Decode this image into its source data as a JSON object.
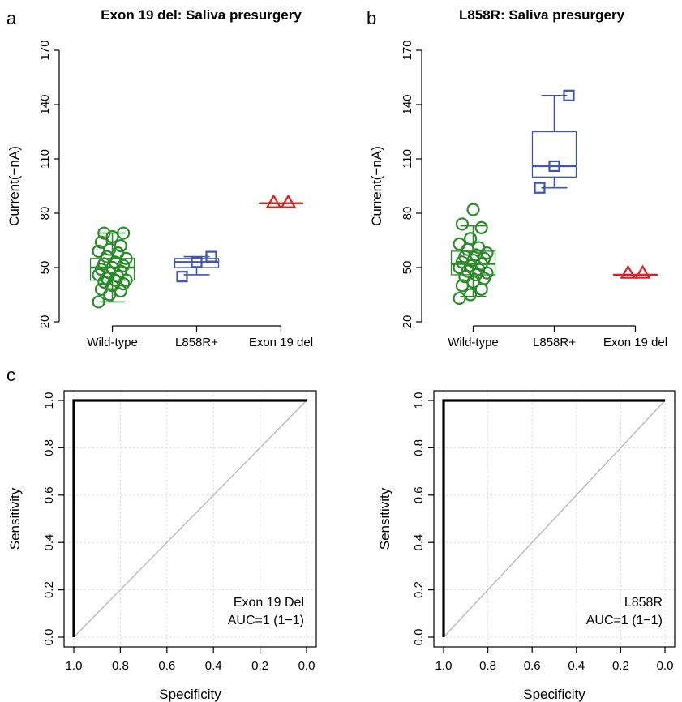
{
  "panel_letters": [
    "a",
    "b",
    "c"
  ],
  "chart_data": [
    {
      "type": "box",
      "title": "Exon 19 del: Saliva presurgery",
      "ylabel": "Current(−nA)",
      "xlabel": "",
      "ylim": [
        20,
        170
      ],
      "yticks": [
        "20",
        "50",
        "80",
        "110",
        "140",
        "170"
      ],
      "grid": false,
      "categories": [
        "Wild-type",
        "L858R+",
        "Exon 19 del"
      ],
      "colors": [
        "#2a8a2a",
        "#3f55b0",
        "#e02020"
      ],
      "markers": [
        "circle",
        "square",
        "triangle"
      ],
      "boxes": [
        {
          "q1": 43,
          "median": 50,
          "q3": 55,
          "whisker_low": 31,
          "whisker_high": 69
        },
        {
          "q1": 50,
          "median": 53,
          "q3": 55,
          "whisker_low": 46,
          "whisker_high": 56
        },
        {
          "q1": 85.5,
          "median": 85.5,
          "q3": 85.5,
          "whisker_low": 85.5,
          "whisker_high": 85.5
        }
      ],
      "points": [
        [
          31,
          35,
          37,
          38,
          40,
          41,
          42,
          43,
          43,
          44,
          45,
          46,
          47,
          48,
          49,
          50,
          51,
          52,
          53,
          55,
          56,
          58,
          59,
          60,
          62,
          64,
          67,
          69,
          69
        ],
        [
          45,
          53,
          56
        ],
        [
          86,
          86
        ]
      ]
    },
    {
      "type": "box",
      "title": "L858R: Saliva presurgery",
      "ylabel": "Current(−nA)",
      "xlabel": "",
      "ylim": [
        20,
        170
      ],
      "yticks": [
        "20",
        "50",
        "80",
        "110",
        "140",
        "170"
      ],
      "grid": false,
      "categories": [
        "Wild-type",
        "L858R+",
        "Exon 19 del"
      ],
      "colors": [
        "#2a8a2a",
        "#3f55b0",
        "#e02020"
      ],
      "markers": [
        "circle",
        "square",
        "triangle"
      ],
      "boxes": [
        {
          "q1": 46,
          "median": 52,
          "q3": 59,
          "whisker_low": 34,
          "whisker_high": 73
        },
        {
          "q1": 100,
          "median": 106,
          "q3": 125,
          "whisker_low": 94,
          "whisker_high": 145
        },
        {
          "q1": 46,
          "median": 46,
          "q3": 46,
          "whisker_low": 46,
          "whisker_high": 46
        }
      ],
      "points": [
        [
          33,
          35,
          38,
          40,
          42,
          44,
          45,
          46,
          47,
          48,
          49,
          50,
          51,
          52,
          53,
          54,
          55,
          56,
          57,
          58,
          60,
          61,
          63,
          66,
          72,
          74,
          82
        ],
        [
          94,
          106,
          145
        ],
        [
          47,
          47
        ]
      ]
    },
    {
      "type": "line",
      "title": "",
      "xlabel": "Specificity",
      "ylabel": "Sensitivity",
      "xlim": [
        1.0,
        0.0
      ],
      "ylim": [
        0.0,
        1.0
      ],
      "xticks": [
        "1.0",
        "0.8",
        "0.6",
        "0.4",
        "0.2",
        "0.0"
      ],
      "yticks": [
        "0.0",
        "0.2",
        "0.4",
        "0.6",
        "0.8",
        "1.0"
      ],
      "grid": true,
      "series": [
        {
          "x": [
            1.0,
            1.0,
            0.0
          ],
          "y": [
            0.0,
            1.0,
            1.0
          ]
        }
      ],
      "reference_line": {
        "x": [
          1.0,
          0.0
        ],
        "y": [
          0.0,
          1.0
        ]
      },
      "annotation": [
        "Exon 19 Del",
        "AUC=1 (1−1)"
      ]
    },
    {
      "type": "line",
      "title": "",
      "xlabel": "Specificity",
      "ylabel": "Sensitivity",
      "xlim": [
        1.0,
        0.0
      ],
      "ylim": [
        0.0,
        1.0
      ],
      "xticks": [
        "1.0",
        "0.8",
        "0.6",
        "0.4",
        "0.2",
        "0.0"
      ],
      "yticks": [
        "0.0",
        "0.2",
        "0.4",
        "0.6",
        "0.8",
        "1.0"
      ],
      "grid": true,
      "series": [
        {
          "x": [
            1.0,
            1.0,
            0.0
          ],
          "y": [
            0.0,
            1.0,
            1.0
          ]
        }
      ],
      "reference_line": {
        "x": [
          1.0,
          0.0
        ],
        "y": [
          0.0,
          1.0
        ]
      },
      "annotation": [
        "L858R",
        "AUC=1 (1−1)"
      ]
    }
  ]
}
